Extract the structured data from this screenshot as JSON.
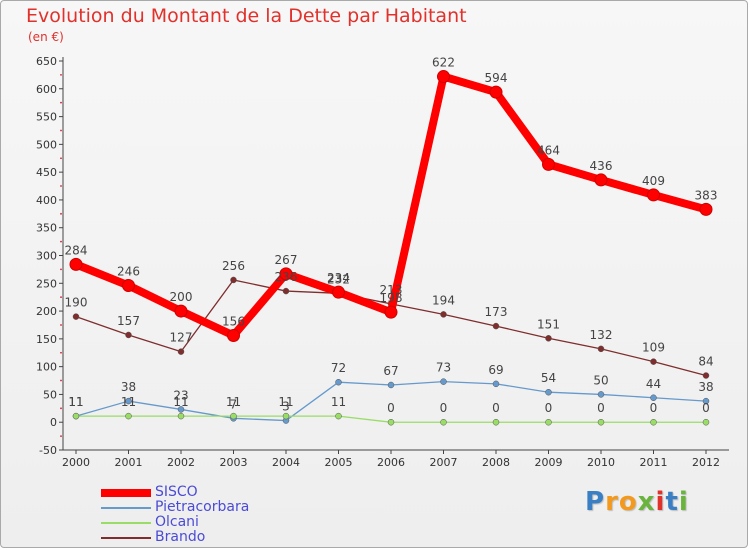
{
  "chart_data": {
    "type": "line",
    "title": "Evolution du Montant de la Dette par Habitant",
    "subtitle": "(en €)",
    "x": [
      "2000",
      "2001",
      "2002",
      "2003",
      "2004",
      "2005",
      "2006",
      "2007",
      "2008",
      "2009",
      "2010",
      "2011",
      "2012"
    ],
    "ylim": [
      -50,
      650
    ],
    "yticks": [
      -50,
      0,
      50,
      100,
      150,
      200,
      250,
      300,
      350,
      400,
      450,
      500,
      550,
      600,
      650
    ],
    "grid": false,
    "legend_position": "bottom-left",
    "series": [
      {
        "name": "SISCO",
        "color": "#ff0000",
        "values": [
          284,
          246,
          200,
          156,
          267,
          234,
          198,
          622,
          594,
          464,
          436,
          409,
          383
        ]
      },
      {
        "name": "Pietracorbara",
        "color": "#6699cc",
        "values": [
          11,
          38,
          23,
          7,
          3,
          72,
          67,
          73,
          69,
          54,
          50,
          44,
          38
        ]
      },
      {
        "name": "Olcani",
        "color": "#99dd66",
        "values": [
          11,
          11,
          11,
          11,
          11,
          11,
          0,
          0,
          0,
          0,
          0,
          0,
          0
        ]
      },
      {
        "name": "Brando",
        "color": "#7f2d2d",
        "values": [
          190,
          157,
          127,
          256,
          236,
          232,
          213,
          194,
          173,
          151,
          132,
          109,
          84
        ]
      }
    ]
  },
  "logo": {
    "text": "Proxiti",
    "letters": [
      "P",
      "r",
      "o",
      "x",
      "i",
      "t",
      "i"
    ],
    "colors": [
      "#3a7fc4",
      "#f39a1e",
      "#f39a1e",
      "#6ab43e",
      "#e0312b",
      "#3a7fc4",
      "#6ab43e"
    ]
  }
}
